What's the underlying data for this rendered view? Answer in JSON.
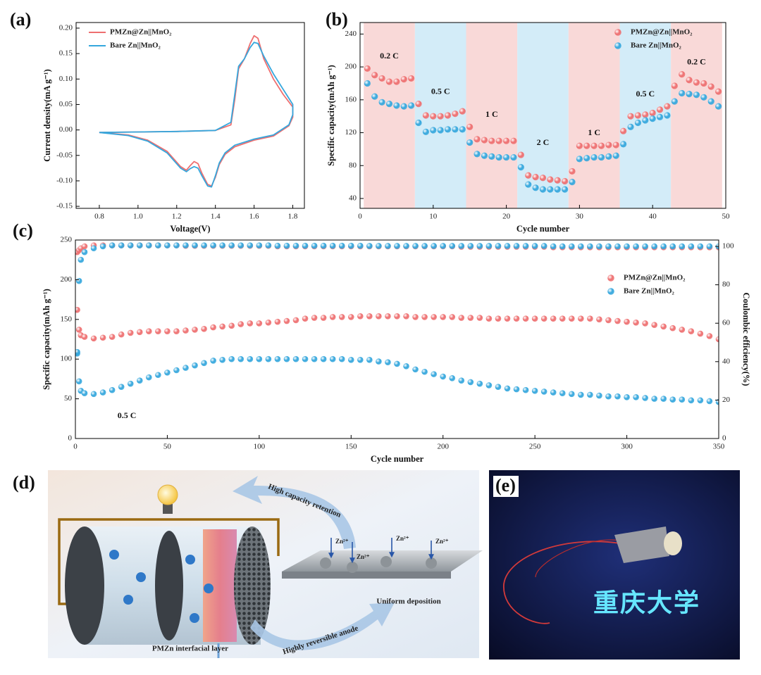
{
  "panel_labels": [
    "(a)",
    "(b)",
    "(c)",
    "(d)",
    "(e)"
  ],
  "chart_data": [
    {
      "type": "line",
      "xlabel": "Voltage(V)",
      "ylabel": "Current density(mA g⁻¹)",
      "xlim": [
        0.68,
        1.86
      ],
      "ylim": [
        -0.154,
        0.211
      ],
      "xticks": [
        0.8,
        {
          "value": 1,
          "label": "1.0"
        },
        1.2,
        1.4,
        1.6,
        1.8
      ],
      "yticks": [
        -0.15,
        {
          "value": -0.1,
          "label": "-0.10"
        },
        -0.05,
        {
          "value": 0,
          "label": "0.00"
        },
        0.05,
        {
          "value": 0.1,
          "label": "0.10"
        },
        0.15,
        {
          "value": 0.2,
          "label": "0.20"
        }
      ],
      "legend": "upper left",
      "series": [
        {
          "name": "PMZn@Zn||MnO₂",
          "color": "#ee6f70",
          "x": [
            0.8,
            1.0,
            1.2,
            1.4,
            1.48,
            1.5,
            1.52,
            1.55,
            1.58,
            1.6,
            1.62,
            1.65,
            1.7,
            1.75,
            1.8,
            1.8,
            1.78,
            1.7,
            1.6,
            1.5,
            1.45,
            1.42,
            1.4,
            1.38,
            1.36,
            1.33,
            1.31,
            1.29,
            1.27,
            1.25,
            1.22,
            1.15,
            1.05,
            0.95,
            0.8
          ],
          "values": [
            -0.005,
            -0.004,
            -0.003,
            -0.001,
            0.01,
            0.06,
            0.12,
            0.14,
            0.17,
            0.185,
            0.18,
            0.14,
            0.1,
            0.07,
            0.045,
            0.025,
            0.008,
            -0.012,
            -0.02,
            -0.033,
            -0.048,
            -0.068,
            -0.093,
            -0.11,
            -0.107,
            -0.085,
            -0.066,
            -0.062,
            -0.07,
            -0.079,
            -0.072,
            -0.042,
            -0.02,
            -0.01,
            -0.005
          ]
        },
        {
          "name": "Bare Zn||MnO₂",
          "color": "#35a7dd",
          "x": [
            0.8,
            1.0,
            1.2,
            1.4,
            1.48,
            1.5,
            1.52,
            1.55,
            1.58,
            1.6,
            1.62,
            1.65,
            1.7,
            1.75,
            1.8,
            1.8,
            1.78,
            1.7,
            1.6,
            1.5,
            1.45,
            1.42,
            1.4,
            1.38,
            1.36,
            1.33,
            1.31,
            1.29,
            1.27,
            1.25,
            1.22,
            1.15,
            1.05,
            0.95,
            0.8
          ],
          "values": [
            -0.005,
            -0.004,
            -0.003,
            -0.001,
            0.015,
            0.07,
            0.125,
            0.14,
            0.162,
            0.172,
            0.17,
            0.145,
            0.11,
            0.08,
            0.05,
            0.03,
            0.01,
            -0.01,
            -0.018,
            -0.03,
            -0.045,
            -0.065,
            -0.09,
            -0.112,
            -0.11,
            -0.09,
            -0.075,
            -0.072,
            -0.076,
            -0.082,
            -0.075,
            -0.045,
            -0.022,
            -0.011,
            -0.005
          ]
        }
      ]
    },
    {
      "type": "scatter",
      "xlabel": "Cycle number",
      "ylabel": "Specific capacity(mAh g⁻¹)",
      "xlim": [
        0,
        50
      ],
      "ylim": [
        28,
        254
      ],
      "xticks": [
        0,
        10,
        20,
        30,
        40,
        50
      ],
      "yticks": [
        40,
        80,
        120,
        160,
        200,
        240
      ],
      "legend": "upper right",
      "rate_steps": [
        {
          "label": "0.2 C",
          "cycles": [
            1,
            7
          ]
        },
        {
          "label": "0.5 C",
          "cycles": [
            8,
            14
          ]
        },
        {
          "label": "1 C",
          "cycles": [
            15,
            21
          ]
        },
        {
          "label": "2 C",
          "cycles": [
            22,
            28
          ]
        },
        {
          "label": "1 C",
          "cycles": [
            29,
            35
          ]
        },
        {
          "label": "0.5 C",
          "cycles": [
            36,
            42
          ]
        },
        {
          "label": "0.2 C",
          "cycles": [
            43,
            49
          ]
        }
      ],
      "x": [
        1,
        2,
        3,
        4,
        5,
        6,
        7,
        8,
        9,
        10,
        11,
        12,
        13,
        14,
        15,
        16,
        17,
        18,
        19,
        20,
        21,
        22,
        23,
        24,
        25,
        26,
        27,
        28,
        29,
        30,
        31,
        32,
        33,
        34,
        35,
        36,
        37,
        38,
        39,
        40,
        41,
        42,
        43,
        44,
        45,
        46,
        47,
        48,
        49
      ],
      "series": [
        {
          "name": "PMZn@Zn||MnO₂",
          "color": "#ee6f70",
          "values": [
            198,
            190,
            186,
            182,
            182,
            185,
            186,
            155,
            141,
            140,
            140,
            141,
            143,
            146,
            127,
            112,
            111,
            110,
            110,
            110,
            110,
            93,
            68,
            66,
            65,
            63,
            62,
            61,
            73,
            104,
            104,
            104,
            104,
            105,
            105,
            122,
            140,
            141,
            142,
            144,
            148,
            152,
            177,
            191,
            184,
            181,
            180,
            176,
            170
          ]
        },
        {
          "name": "Bare Zn||MnO₂",
          "color": "#35a7dd",
          "values": [
            180,
            164,
            157,
            155,
            153,
            152,
            153,
            132,
            121,
            123,
            123,
            124,
            124,
            124,
            108,
            94,
            92,
            91,
            90,
            90,
            90,
            78,
            57,
            53,
            51,
            51,
            51,
            51,
            60,
            88,
            89,
            90,
            90,
            91,
            92,
            106,
            127,
            132,
            135,
            137,
            139,
            141,
            158,
            168,
            167,
            166,
            163,
            158,
            152
          ]
        }
      ]
    },
    {
      "type": "scatter",
      "xlabel": "Cycle number",
      "ylabel": "Specific capacity(mAh g⁻¹)",
      "y2label": "Coulombic efficiency(%)",
      "annotation": "0.5 C",
      "xlim": [
        0,
        350
      ],
      "ylim": [
        0,
        250
      ],
      "y2lim": [
        0,
        103.3
      ],
      "xticks": [
        0,
        50,
        100,
        150,
        200,
        250,
        300,
        350
      ],
      "yticks": [
        0,
        50,
        100,
        150,
        200,
        250
      ],
      "y2ticks": [
        0,
        20,
        40,
        60,
        80,
        100
      ],
      "legend": "upper right",
      "x": [
        1,
        2,
        3,
        5,
        10,
        15,
        20,
        25,
        30,
        35,
        40,
        45,
        50,
        55,
        60,
        65,
        70,
        75,
        80,
        85,
        90,
        95,
        100,
        105,
        110,
        115,
        120,
        125,
        130,
        135,
        140,
        145,
        150,
        155,
        160,
        165,
        170,
        175,
        180,
        185,
        190,
        195,
        200,
        205,
        210,
        215,
        220,
        225,
        230,
        235,
        240,
        245,
        250,
        255,
        260,
        265,
        270,
        275,
        280,
        285,
        290,
        295,
        300,
        305,
        310,
        315,
        320,
        325,
        330,
        335,
        340,
        345,
        350
      ],
      "series": [
        {
          "name": "PMZn@Zn||MnO₂",
          "color": "#ee6f70",
          "values": [
            162,
            137,
            130,
            128,
            126,
            127,
            128,
            131,
            133,
            134,
            135,
            135,
            135,
            135,
            136,
            137,
            138,
            140,
            141,
            142,
            144,
            145,
            145,
            146,
            147,
            148,
            149,
            151,
            152,
            152,
            153,
            153,
            153,
            154,
            154,
            154,
            154,
            154,
            154,
            153,
            153,
            153,
            153,
            153,
            152,
            152,
            152,
            151,
            151,
            151,
            151,
            151,
            151,
            151,
            151,
            151,
            151,
            151,
            151,
            150,
            149,
            148,
            147,
            146,
            145,
            143,
            141,
            139,
            137,
            135,
            132,
            129,
            125
          ]
        },
        {
          "name": "Bare Zn||MnO₂",
          "color": "#35a7dd",
          "values": [
            107,
            72,
            60,
            57,
            56,
            58,
            61,
            65,
            69,
            73,
            77,
            80,
            83,
            86,
            89,
            92,
            95,
            98,
            99,
            100,
            100,
            100,
            100,
            100,
            100,
            100,
            100,
            100,
            100,
            100,
            100,
            100,
            99,
            99,
            99,
            97,
            96,
            94,
            91,
            87,
            84,
            81,
            78,
            76,
            73,
            71,
            69,
            67,
            65,
            63,
            62,
            61,
            60,
            59,
            58,
            57,
            56,
            55,
            55,
            54,
            53,
            53,
            52,
            52,
            51,
            50,
            50,
            49,
            49,
            48,
            48,
            47,
            46
          ]
        },
        {
          "color": "#ee6f70",
          "axis": "y2",
          "values": [
            97,
            98,
            99,
            100,
            100.5,
            100.5,
            100.5,
            100.5,
            100.5,
            100.5,
            100.5,
            100.5,
            100.5,
            100.5,
            100.3,
            100.3,
            100.3,
            100.3,
            100.3,
            100.3,
            100.3,
            100.3,
            100.3,
            100.3,
            100,
            100,
            100,
            100,
            100,
            100,
            100,
            100,
            100,
            100,
            100,
            100,
            100,
            100,
            100,
            100,
            100,
            100,
            100,
            100,
            99.8,
            99.8,
            99.8,
            99.8,
            99.8,
            99.8,
            99.8,
            99.8,
            99.8,
            99.8,
            99.5,
            99.5,
            99.5,
            99.5,
            99.5,
            99.5,
            99.5,
            99.5,
            99.5,
            99.5,
            99.5,
            99.5,
            99.5,
            99.5,
            99.5,
            99.5,
            99.5,
            99.5,
            99.5
          ]
        },
        {
          "color": "#35a7dd",
          "axis": "y2",
          "values": [
            45,
            82,
            93,
            97,
            99,
            100,
            100.5,
            100.5,
            100.5,
            100.5,
            100.5,
            100.5,
            100.5,
            100.5,
            100.5,
            100.5,
            100.5,
            100.5,
            100.5,
            100.5,
            100.5,
            100.5,
            100.5,
            100.5,
            100.3,
            100.3,
            100.3,
            100.3,
            100.3,
            100.3,
            100.3,
            100.3,
            100.3,
            100.3,
            100.2,
            100.2,
            100.2,
            100.2,
            100.2,
            100.2,
            100.2,
            100.2,
            100.2,
            100.2,
            100.2,
            100.2,
            100.2,
            100.2,
            100.2,
            100.2,
            100.2,
            100.2,
            100.2,
            100.2,
            100,
            100,
            100,
            100,
            100,
            100,
            100,
            100,
            100,
            100,
            100,
            100,
            100,
            100,
            100,
            100,
            100,
            100,
            100
          ]
        }
      ]
    }
  ],
  "diagram": {
    "top_arrow": "High capacity retention",
    "bottom_arrow": "Highly reversible anode",
    "deposition": "Uniform deposition",
    "layer": "PMZn interfacial layer",
    "ions": [
      "Zn²⁺",
      "Zn²⁺",
      "Zn²⁺",
      "Zn²⁺"
    ]
  },
  "photo": {
    "led_text": "重庆大学"
  }
}
